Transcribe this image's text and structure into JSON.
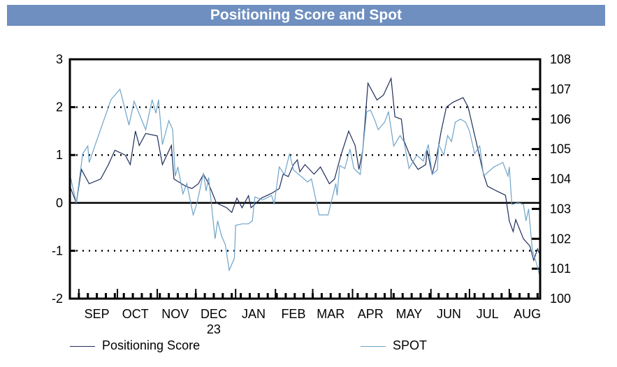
{
  "chart_data": {
    "type": "line",
    "title": "Positioning Score and Spot",
    "x_range": [
      "2023-08-25",
      "2024-08-25"
    ],
    "x_tick_labels": [
      "SEP",
      "OCT",
      "NOV",
      "DEC",
      "JAN",
      "FEB",
      "MAR",
      "APR",
      "MAY",
      "JUN",
      "JUL",
      "AUG"
    ],
    "x_year_label": "23",
    "y_left": {
      "range": [
        -2,
        3
      ],
      "ticks": [
        "3",
        "2",
        "1",
        "0",
        "-1",
        "-2"
      ],
      "reference_lines": [
        2,
        1,
        -1
      ],
      "zero_line": 0
    },
    "y_right": {
      "range": [
        100,
        108
      ],
      "ticks": [
        "108",
        "107",
        "106",
        "105",
        "104",
        "103",
        "102",
        "101",
        "100"
      ]
    },
    "grid": "dotted horizontal at 2, 1, -1",
    "legend_position": "bottom",
    "series": [
      {
        "name": "Positioning Score",
        "axis": "left",
        "color": "#1f2d5a",
        "points": [
          [
            "2023-08-25",
            0.35
          ],
          [
            "2023-08-30",
            0.0
          ],
          [
            "2023-09-03",
            0.7
          ],
          [
            "2023-09-09",
            0.4
          ],
          [
            "2023-09-18",
            0.5
          ],
          [
            "2023-09-24",
            0.8
          ],
          [
            "2023-09-29",
            1.1
          ],
          [
            "2023-10-07",
            1.0
          ],
          [
            "2023-10-11",
            0.8
          ],
          [
            "2023-10-15",
            1.5
          ],
          [
            "2023-10-18",
            1.2
          ],
          [
            "2023-10-23",
            1.45
          ],
          [
            "2023-11-01",
            1.4
          ],
          [
            "2023-11-05",
            0.8
          ],
          [
            "2023-11-12",
            1.2
          ],
          [
            "2023-11-14",
            0.5
          ],
          [
            "2023-11-23",
            0.35
          ],
          [
            "2023-11-28",
            0.3
          ],
          [
            "2023-12-03",
            0.4
          ],
          [
            "2023-12-07",
            0.6
          ],
          [
            "2023-12-11",
            0.4
          ],
          [
            "2023-12-17",
            0.0
          ],
          [
            "2023-12-25",
            -0.1
          ],
          [
            "2023-12-29",
            -0.2
          ],
          [
            "2024-01-02",
            0.1
          ],
          [
            "2024-01-06",
            -0.1
          ],
          [
            "2024-01-11",
            0.15
          ],
          [
            "2024-01-13",
            -0.1
          ],
          [
            "2024-01-21",
            0.1
          ],
          [
            "2024-01-29",
            0.2
          ],
          [
            "2024-02-04",
            0.3
          ],
          [
            "2024-02-07",
            0.6
          ],
          [
            "2024-02-11",
            0.55
          ],
          [
            "2024-02-15",
            0.8
          ],
          [
            "2024-02-18",
            0.9
          ],
          [
            "2024-02-20",
            0.65
          ],
          [
            "2024-02-24",
            0.8
          ],
          [
            "2024-03-02",
            0.6
          ],
          [
            "2024-03-07",
            0.75
          ],
          [
            "2024-03-14",
            0.4
          ],
          [
            "2024-03-18",
            0.5
          ],
          [
            "2024-03-21",
            0.8
          ],
          [
            "2024-03-23",
            1.0
          ],
          [
            "2024-03-29",
            1.5
          ],
          [
            "2024-04-03",
            1.2
          ],
          [
            "2024-04-06",
            0.7
          ],
          [
            "2024-04-09",
            1.1
          ],
          [
            "2024-04-13",
            2.5
          ],
          [
            "2024-04-20",
            2.15
          ],
          [
            "2024-04-25",
            2.25
          ],
          [
            "2024-05-01",
            2.6
          ],
          [
            "2024-05-04",
            1.8
          ],
          [
            "2024-05-09",
            1.75
          ],
          [
            "2024-05-11",
            1.3
          ],
          [
            "2024-05-17",
            0.9
          ],
          [
            "2024-05-22",
            0.7
          ],
          [
            "2024-05-28",
            0.8
          ],
          [
            "2024-05-29",
            1.1
          ],
          [
            "2024-06-02",
            0.6
          ],
          [
            "2024-06-05",
            0.9
          ],
          [
            "2024-06-09",
            1.5
          ],
          [
            "2024-06-13",
            2.0
          ],
          [
            "2024-06-18",
            2.1
          ],
          [
            "2024-06-26",
            2.2
          ],
          [
            "2024-06-30",
            2.0
          ],
          [
            "2024-07-06",
            1.3
          ],
          [
            "2024-07-12",
            0.6
          ],
          [
            "2024-07-15",
            0.35
          ],
          [
            "2024-07-22",
            0.25
          ],
          [
            "2024-07-29",
            0.16
          ],
          [
            "2024-08-01",
            -0.38
          ],
          [
            "2024-08-04",
            -0.6
          ],
          [
            "2024-08-06",
            -0.35
          ],
          [
            "2024-08-12",
            -0.75
          ],
          [
            "2024-08-17",
            -0.9
          ],
          [
            "2024-08-20",
            -1.2
          ],
          [
            "2024-08-23",
            -0.96
          ],
          [
            "2024-08-25",
            -1.1
          ]
        ]
      },
      {
        "name": "SPOT",
        "axis": "right",
        "color": "#6fa3c8",
        "points": [
          [
            "2023-08-25",
            104.15
          ],
          [
            "2023-08-30",
            103.2
          ],
          [
            "2023-09-04",
            104.85
          ],
          [
            "2023-09-08",
            105.1
          ],
          [
            "2023-09-09",
            104.55
          ],
          [
            "2023-09-15",
            105.3
          ],
          [
            "2023-09-26",
            106.65
          ],
          [
            "2023-10-03",
            107.0
          ],
          [
            "2023-10-10",
            105.8
          ],
          [
            "2023-10-14",
            106.6
          ],
          [
            "2023-10-23",
            105.65
          ],
          [
            "2023-10-28",
            106.65
          ],
          [
            "2023-10-31",
            106.2
          ],
          [
            "2023-11-02",
            106.65
          ],
          [
            "2023-11-05",
            105.15
          ],
          [
            "2023-11-10",
            105.95
          ],
          [
            "2023-11-13",
            105.65
          ],
          [
            "2023-11-15",
            104.1
          ],
          [
            "2023-11-17",
            104.4
          ],
          [
            "2023-11-21",
            103.5
          ],
          [
            "2023-11-24",
            103.85
          ],
          [
            "2023-11-29",
            102.8
          ],
          [
            "2023-12-02",
            103.2
          ],
          [
            "2023-12-07",
            104.2
          ],
          [
            "2023-12-09",
            103.6
          ],
          [
            "2023-12-11",
            104.05
          ],
          [
            "2023-12-16",
            102.0
          ],
          [
            "2023-12-18",
            102.6
          ],
          [
            "2023-12-21",
            102.1
          ],
          [
            "2023-12-24",
            101.8
          ],
          [
            "2023-12-27",
            100.95
          ],
          [
            "2023-12-31",
            101.35
          ],
          [
            "2024-01-01",
            102.45
          ],
          [
            "2024-01-06",
            102.5
          ],
          [
            "2024-01-11",
            102.5
          ],
          [
            "2024-01-14",
            102.6
          ],
          [
            "2024-01-16",
            103.4
          ],
          [
            "2024-01-22",
            103.3
          ],
          [
            "2024-01-29",
            103.45
          ],
          [
            "2024-01-31",
            103.15
          ],
          [
            "2024-02-04",
            104.4
          ],
          [
            "2024-02-08",
            104.15
          ],
          [
            "2024-02-12",
            104.85
          ],
          [
            "2024-02-15",
            104.3
          ],
          [
            "2024-02-26",
            103.9
          ],
          [
            "2024-02-29",
            104.0
          ],
          [
            "2024-03-06",
            102.8
          ],
          [
            "2024-03-13",
            102.8
          ],
          [
            "2024-03-19",
            103.85
          ],
          [
            "2024-03-20",
            103.45
          ],
          [
            "2024-03-22",
            104.45
          ],
          [
            "2024-03-26",
            104.35
          ],
          [
            "2024-03-30",
            105.0
          ],
          [
            "2024-04-02",
            104.35
          ],
          [
            "2024-04-07",
            104.15
          ],
          [
            "2024-04-12",
            106.25
          ],
          [
            "2024-04-15",
            106.3
          ],
          [
            "2024-04-18",
            106.0
          ],
          [
            "2024-04-21",
            105.65
          ],
          [
            "2024-04-26",
            105.9
          ],
          [
            "2024-04-29",
            106.25
          ],
          [
            "2024-05-03",
            105.1
          ],
          [
            "2024-05-08",
            105.45
          ],
          [
            "2024-05-11",
            105.25
          ],
          [
            "2024-05-15",
            104.35
          ],
          [
            "2024-05-21",
            104.8
          ],
          [
            "2024-05-26",
            104.6
          ],
          [
            "2024-05-30",
            105.15
          ],
          [
            "2024-06-02",
            104.15
          ],
          [
            "2024-06-06",
            104.3
          ],
          [
            "2024-06-07",
            105.15
          ],
          [
            "2024-06-11",
            104.8
          ],
          [
            "2024-06-14",
            105.45
          ],
          [
            "2024-06-17",
            105.25
          ],
          [
            "2024-06-20",
            105.9
          ],
          [
            "2024-06-24",
            106.0
          ],
          [
            "2024-06-28",
            105.9
          ],
          [
            "2024-07-01",
            105.6
          ],
          [
            "2024-07-05",
            104.85
          ],
          [
            "2024-07-09",
            105.1
          ],
          [
            "2024-07-12",
            104.1
          ],
          [
            "2024-07-20",
            104.4
          ],
          [
            "2024-07-27",
            104.55
          ],
          [
            "2024-07-31",
            104.1
          ],
          [
            "2024-08-01",
            104.4
          ],
          [
            "2024-08-03",
            103.15
          ],
          [
            "2024-08-08",
            103.2
          ],
          [
            "2024-08-12",
            103.15
          ],
          [
            "2024-08-14",
            102.6
          ],
          [
            "2024-08-16",
            103.0
          ],
          [
            "2024-08-19",
            101.6
          ],
          [
            "2024-08-22",
            101.2
          ],
          [
            "2024-08-25",
            100.7
          ]
        ]
      }
    ]
  }
}
